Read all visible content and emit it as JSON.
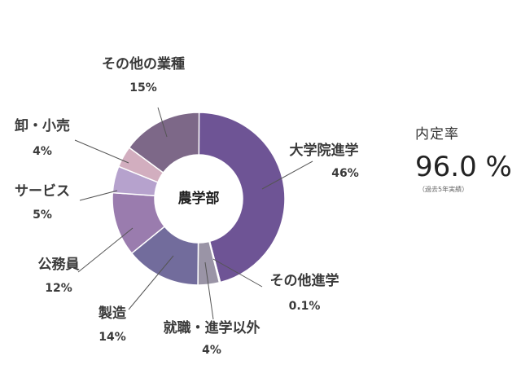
{
  "chart_data": {
    "type": "pie",
    "donut": true,
    "center_label": "農学部",
    "slices": [
      {
        "label": "大学院進学",
        "value": 46,
        "value_label": "46%",
        "color": "#6e5495"
      },
      {
        "label": "その他進学",
        "value": 0.1,
        "value_label": "0.1%",
        "color": "#8b8194"
      },
      {
        "label": "就職・進学以外",
        "value": 4,
        "value_label": "4%",
        "color": "#9a94a6"
      },
      {
        "label": "製造",
        "value": 14,
        "value_label": "14%",
        "color": "#726c9c"
      },
      {
        "label": "公務員",
        "value": 12,
        "value_label": "12%",
        "color": "#9a7cae"
      },
      {
        "label": "サービス",
        "value": 5,
        "value_label": "5%",
        "color": "#b6a2cd"
      },
      {
        "label": "卸・小売",
        "value": 4,
        "value_label": "4%",
        "color": "#d2aebf"
      },
      {
        "label": "その他の業種",
        "value": 15,
        "value_label": "15%",
        "color": "#7d6888"
      }
    ]
  },
  "stats": {
    "label": "内定率",
    "value": "96.0 %",
    "note": "（過去5年実績）"
  }
}
